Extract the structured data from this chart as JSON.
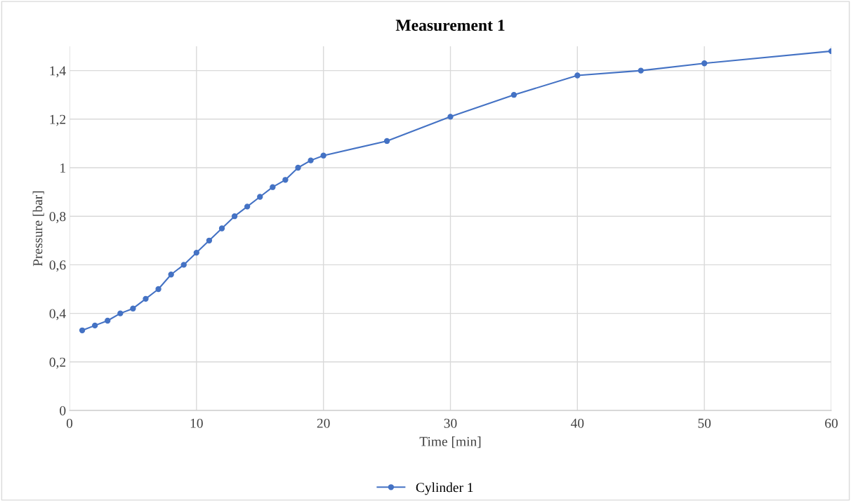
{
  "chart_data": {
    "type": "line",
    "title": "Measurement 1",
    "xlabel": "Time [min]",
    "ylabel": "Pressure [bar]",
    "x": [
      1,
      2,
      3,
      4,
      5,
      6,
      7,
      8,
      9,
      10,
      11,
      12,
      13,
      14,
      15,
      16,
      17,
      18,
      19,
      20,
      25,
      30,
      35,
      40,
      45,
      50,
      60
    ],
    "series": [
      {
        "name": "Cylinder 1",
        "color": "#4472c4",
        "values": [
          0.33,
          0.35,
          0.37,
          0.4,
          0.42,
          0.46,
          0.5,
          0.56,
          0.6,
          0.65,
          0.7,
          0.75,
          0.8,
          0.84,
          0.88,
          0.92,
          0.95,
          1.0,
          1.03,
          1.05,
          1.11,
          1.21,
          1.3,
          1.38,
          1.4,
          1.43,
          1.48
        ]
      }
    ],
    "xlim": [
      0,
      60
    ],
    "xticks": [
      0,
      10,
      20,
      30,
      40,
      50,
      60
    ],
    "ylim": [
      0,
      1.5
    ],
    "yticks": [
      0,
      {
        "value": 0.2,
        "label": "0,2"
      },
      {
        "value": 0.4,
        "label": "0,4"
      },
      {
        "value": 0.6,
        "label": "0,6"
      },
      {
        "value": 0.8,
        "label": "0,8"
      },
      1,
      {
        "value": 1.2,
        "label": "1,2"
      },
      {
        "value": 1.4,
        "label": "1,4"
      }
    ],
    "grid": true,
    "legend": "bottom",
    "marker": "circle",
    "line_style": "solid"
  }
}
